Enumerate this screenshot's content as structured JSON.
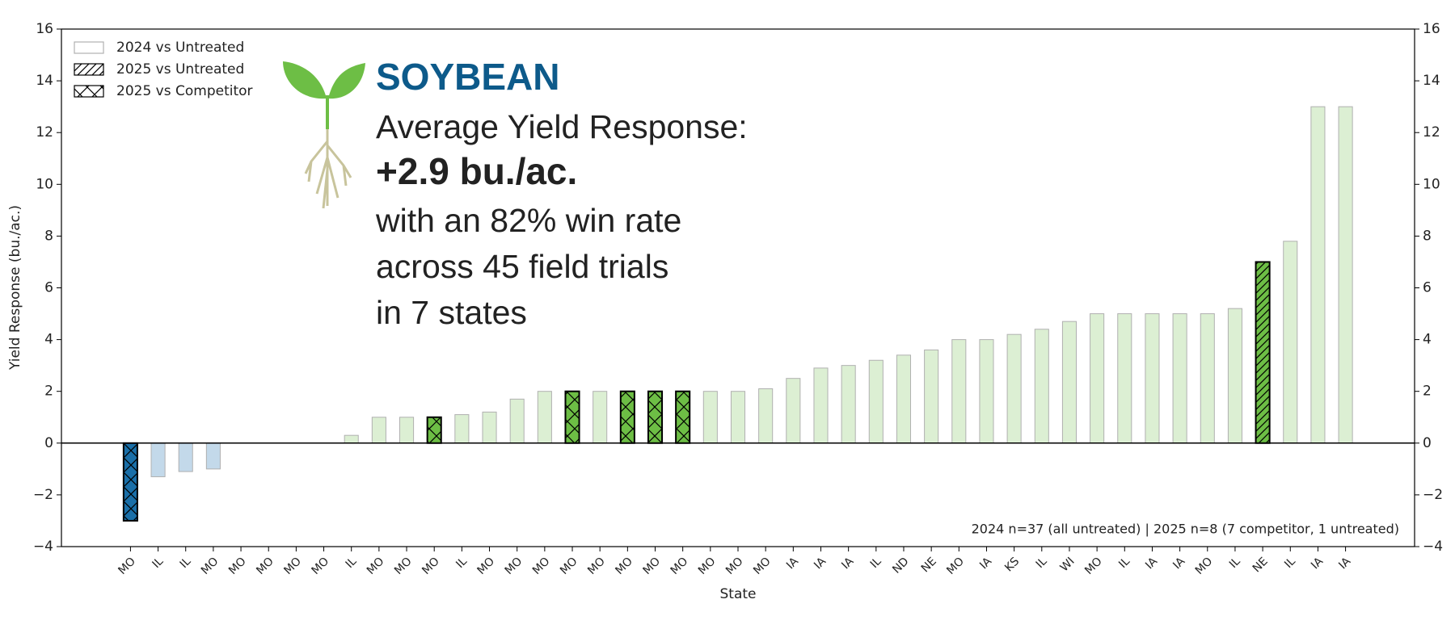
{
  "chart_data": {
    "type": "bar",
    "header": {
      "brand": "SOYBEAN",
      "lines": [
        "Average Yield Response:",
        "+2.9 bu./ac.",
        "with an 82% win rate",
        "across 45 field trials",
        "in 7 states"
      ]
    },
    "footnote": "2024 n=37 (all untreated) | 2025 n=8 (7 competitor, 1 untreated)",
    "x_label": "State",
    "y_label": "Yield Response (bu./ac.)",
    "categories": [
      "MO",
      "IL",
      "IL",
      "MO",
      "MO",
      "MO",
      "MO",
      "MO",
      "IL",
      "MO",
      "MO",
      "MO",
      "IL",
      "MO",
      "MO",
      "MO",
      "MO",
      "MO",
      "MO",
      "MO",
      "MO",
      "MO",
      "MO",
      "MO",
      "IA",
      "IA",
      "IA",
      "IL",
      "ND",
      "NE",
      "MO",
      "IA",
      "KS",
      "IL",
      "WI",
      "MO",
      "IL",
      "IA",
      "IA",
      "MO",
      "IL",
      "NE",
      "IL",
      "IA",
      "IA"
    ],
    "series": [
      {
        "name": "2024 vs Untreated",
        "hatch": "none",
        "edgecolor": "#b0b0b0",
        "positive_color": "#dcefd3",
        "negative_color": "#c3d9ea",
        "values": [
          null,
          -1.3,
          -1.1,
          -1.0,
          0,
          0,
          0,
          null,
          0.3,
          1,
          1,
          null,
          1.1,
          1.2,
          1.7,
          2,
          null,
          2,
          null,
          null,
          null,
          2,
          2,
          2.1,
          2.5,
          2.9,
          3,
          3.2,
          3.4,
          3.6,
          4,
          4,
          4.2,
          4.4,
          4.7,
          5,
          5,
          5,
          5,
          5,
          5.2,
          null,
          7.8,
          13,
          13
        ]
      },
      {
        "name": "2025 vs Untreated",
        "hatch": "diagonal",
        "edgecolor": "#000000",
        "positive_color": "#6dbe45",
        "negative_color": "#1a6fa8",
        "values": [
          null,
          null,
          null,
          null,
          null,
          null,
          null,
          null,
          null,
          null,
          null,
          null,
          null,
          null,
          null,
          null,
          null,
          null,
          null,
          null,
          null,
          null,
          null,
          null,
          null,
          null,
          null,
          null,
          null,
          null,
          null,
          null,
          null,
          null,
          null,
          null,
          null,
          null,
          null,
          null,
          null,
          7,
          null,
          null,
          null
        ]
      },
      {
        "name": "2025 vs Competitor",
        "hatch": "cross",
        "edgecolor": "#000000",
        "positive_color": "#6dbe45",
        "negative_color": "#1a6fa8",
        "values": [
          -3,
          null,
          null,
          null,
          null,
          null,
          null,
          0,
          null,
          null,
          null,
          1,
          null,
          null,
          null,
          null,
          2,
          null,
          2,
          2,
          2,
          null,
          null,
          null,
          null,
          null,
          null,
          null,
          null,
          null,
          null,
          null,
          null,
          null,
          null,
          null,
          null,
          null,
          null,
          null,
          null,
          null,
          null,
          null,
          null
        ]
      }
    ],
    "ylim": [
      -4,
      16
    ],
    "yticks": [
      {
        "value": -4,
        "label": "−4"
      },
      {
        "value": -2,
        "label": "−2"
      },
      0,
      2,
      4,
      6,
      8,
      10,
      12,
      14,
      16
    ]
  }
}
